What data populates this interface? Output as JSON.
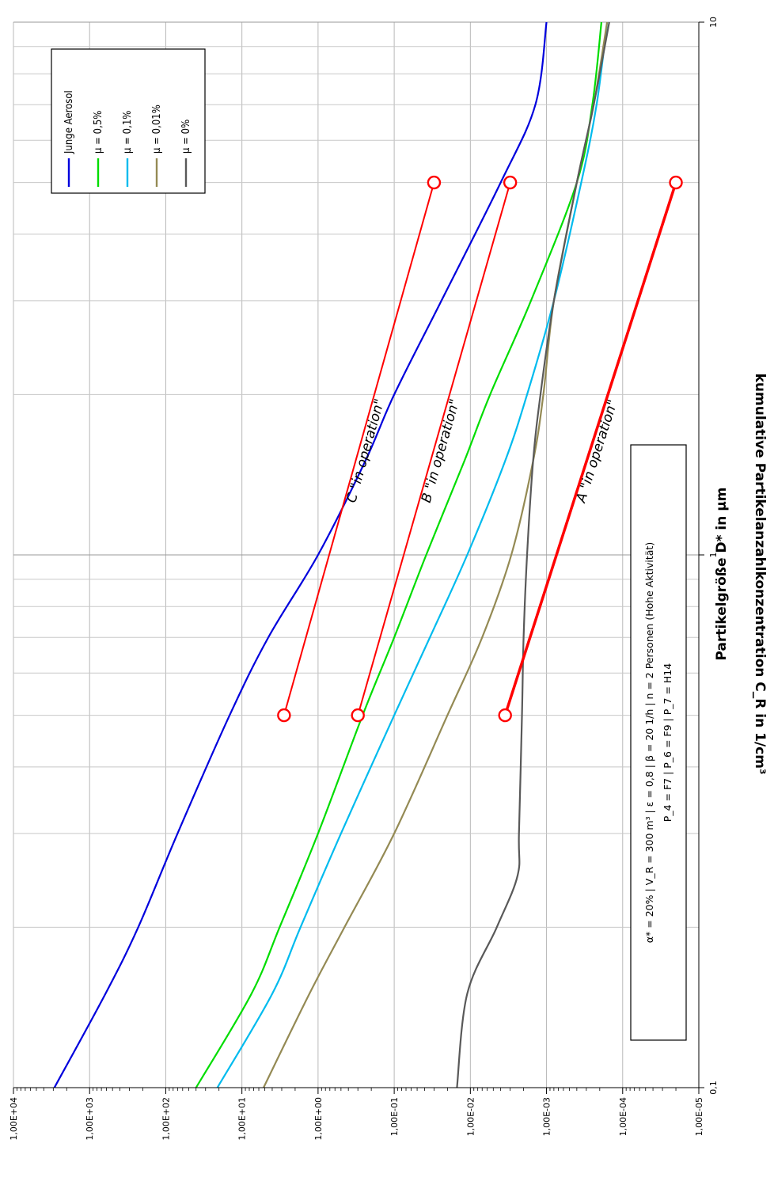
{
  "chart_data": {
    "type": "line",
    "orientation": "rotated 90deg clockwise",
    "xlabel": "Partikelgröße D* in µm",
    "ylabel": "kumulative Partikelanzahlkonzentration C_R in 1/cm³",
    "x_scale": "log",
    "y_scale": "log",
    "xlim": [
      0.1,
      10
    ],
    "ylim": [
      1e-05,
      10000.0
    ],
    "x_tick_labels": [
      "0,1",
      "1",
      "10"
    ],
    "y_ticks": [
      {
        "value": 10000,
        "label": "1,00E+04"
      },
      {
        "value": 1000,
        "label": "1,00E+03"
      },
      {
        "value": 100,
        "label": "1,00E+02"
      },
      {
        "value": 10,
        "label": "1,00E+01"
      },
      {
        "value": 1,
        "label": "1,00E+00"
      },
      {
        "value": 0.1,
        "label": "1,00E-01"
      },
      {
        "value": 0.01,
        "label": "1,00E-02"
      },
      {
        "value": 0.001,
        "label": "1,00E-03"
      },
      {
        "value": 0.0001,
        "label": "1,00E-04"
      },
      {
        "value": 1e-05,
        "label": "1,00E-05"
      }
    ],
    "grid": true,
    "legend_position": "top-right",
    "series": [
      {
        "name": "Junge Aerosol",
        "color": "#0000dd",
        "x": [
          0.1,
          0.15,
          0.2,
          0.3,
          0.5,
          0.7,
          1,
          1.5,
          2,
          3,
          5,
          7,
          10
        ],
        "y": [
          2900,
          620,
          230,
          70,
          14.5,
          4.5,
          1,
          0.24,
          0.1,
          0.024,
          0.004,
          0.0014,
          0.001
        ]
      },
      {
        "name": "µ = 0,5%",
        "color": "#00dd00",
        "x": [
          0.1,
          0.15,
          0.2,
          0.3,
          0.5,
          0.7,
          1,
          1.5,
          2,
          3,
          5,
          7,
          10
        ],
        "y": [
          40,
          7.5,
          3.2,
          1,
          0.26,
          0.1,
          0.038,
          0.012,
          0.0055,
          0.0016,
          0.0004,
          0.00025,
          0.00019
        ]
      },
      {
        "name": "µ = 0,1%",
        "color": "#00bbee",
        "x": [
          0.1,
          0.15,
          0.2,
          0.3,
          0.5,
          0.7,
          1,
          1.5,
          2,
          3,
          5,
          7,
          10
        ],
        "y": [
          21,
          4,
          1.7,
          0.5,
          0.1,
          0.034,
          0.011,
          0.0035,
          0.0018,
          0.0008,
          0.00035,
          0.00022,
          0.00016
        ]
      },
      {
        "name": "µ = 0,01%",
        "color": "#948a54",
        "x": [
          0.1,
          0.15,
          0.2,
          0.3,
          0.5,
          0.7,
          1,
          1.5,
          2,
          3,
          5,
          7,
          10
        ],
        "y": [
          5.2,
          1.3,
          0.45,
          0.1,
          0.02,
          0.007,
          0.0029,
          0.0015,
          0.0011,
          0.0008,
          0.0004,
          0.00024,
          0.00016
        ]
      },
      {
        "name": "µ = 0%",
        "color": "#595959",
        "x": [
          0.1,
          0.15,
          0.2,
          0.25,
          0.3,
          0.5,
          0.7,
          1,
          1.5,
          2,
          3,
          5,
          7,
          10
        ],
        "y": [
          0.015,
          0.011,
          0.0045,
          0.0024,
          0.0023,
          0.0021,
          0.002,
          0.0018,
          0.0015,
          0.0012,
          0.0008,
          0.0004,
          0.00024,
          0.00015
        ]
      }
    ],
    "class_lines": [
      {
        "label": "A \"in operation\"",
        "color": "#ff0000",
        "width": 3.5,
        "x": [
          0.5,
          5
        ],
        "y": [
          0.0035,
          2e-05
        ]
      },
      {
        "label": "B \"in operation\"",
        "color": "#ff0000",
        "width": 2,
        "x": [
          0.5,
          5
        ],
        "y": [
          0.3,
          0.003
        ]
      },
      {
        "label": "C \"in operation\"",
        "color": "#ff0000",
        "width": 2,
        "x": [
          0.5,
          5
        ],
        "y": [
          2.8,
          0.03
        ]
      }
    ],
    "parameter_box": {
      "line1": "α* = 20% | V_R = 300 m³ | ε = 0,8 | β = 20 1/h | n = 2 Personen (Hohe Aktivität)",
      "line2": "P_4 = F7 | P_6 = F9 | P_7 = H14"
    }
  }
}
